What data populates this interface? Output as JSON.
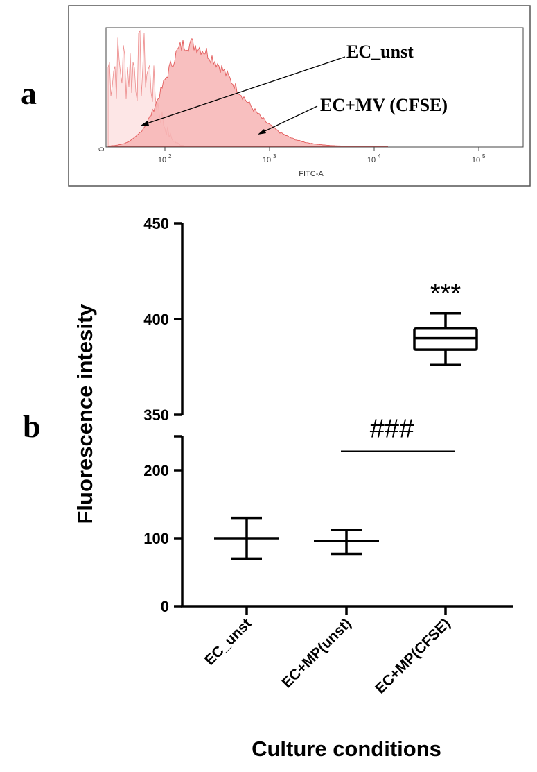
{
  "panel_a": {
    "letter": "a",
    "x_label": "FITC-A",
    "y_zero_label": "0",
    "x_ticks": [
      {
        "value": 100,
        "base": "10",
        "exp": "2"
      },
      {
        "value": 1000,
        "base": "10",
        "exp": "3"
      },
      {
        "value": 10000,
        "base": "10",
        "exp": "4"
      },
      {
        "value": 100000,
        "base": "10",
        "exp": "5"
      }
    ],
    "annotations": [
      {
        "label": "EC_unst",
        "target": "unstained histogram"
      },
      {
        "label": "EC+MV (CFSE)",
        "target": "CFSE-labelled histogram"
      }
    ],
    "colors": {
      "unst_fill": "#fde6e6",
      "unst_line": "#ec8a8a",
      "cfse_fill": "#f7b4b4",
      "cfse_line": "#e25a5a"
    }
  },
  "panel_b": {
    "letter": "b",
    "chart_data": {
      "type": "box",
      "title": "",
      "xlabel": "Culture conditions",
      "ylabel": "Fluorescence intesity",
      "axis_break": {
        "lower_range": [
          0,
          250
        ],
        "upper_range": [
          350,
          450
        ]
      },
      "y_ticks": [
        "0",
        "100",
        "200",
        "350",
        "400",
        "450"
      ],
      "categories": [
        "EC_unst",
        "EC+MP(unst)",
        "EC+MP(CFSE)"
      ],
      "series": [
        {
          "name": "EC_unst",
          "kind": "mean_range",
          "center": 100,
          "low": 70,
          "high": 130
        },
        {
          "name": "EC+MP(unst)",
          "kind": "mean_range",
          "center": 96,
          "low": 77,
          "high": 112
        },
        {
          "name": "EC+MP(CFSE)",
          "kind": "box",
          "min": 376,
          "q1": 384,
          "median": 390,
          "q3": 395,
          "max": 403
        }
      ],
      "annotations": [
        {
          "text": "***",
          "category": "EC+MP(CFSE)",
          "y": 414
        },
        {
          "text": "###",
          "between": [
            "EC+MP(unst)",
            "EC+MP(CFSE)"
          ],
          "y": 228
        }
      ]
    }
  }
}
